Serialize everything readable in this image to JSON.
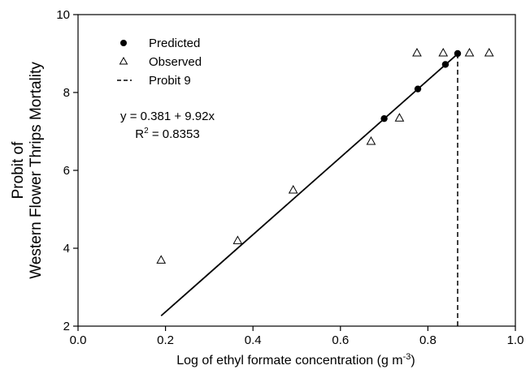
{
  "chart_data": {
    "type": "scatter",
    "title": "",
    "xlabel": "Log of ethyl formate concentration (g m",
    "xlabel_sup": "-3",
    "xlabel_close": ")",
    "ylabel_line1": "Probit of",
    "ylabel_line2": "Western Flower Thrips Mortality",
    "xlim": [
      0.0,
      1.0
    ],
    "ylim": [
      2,
      10
    ],
    "x_ticks": [
      0.0,
      0.2,
      0.4,
      0.6,
      0.8,
      1.0
    ],
    "x_tick_labels": [
      "0.0",
      "0.2",
      "0.4",
      "0.6",
      "0.8",
      "1.0"
    ],
    "y_ticks": [
      2,
      4,
      6,
      8,
      10
    ],
    "y_tick_labels": [
      "2",
      "4",
      "6",
      "8",
      "10"
    ],
    "grid": false,
    "legend_position": "top-left",
    "series": [
      {
        "name": "Predicted",
        "marker": "filled-circle",
        "x": [
          0.7,
          0.777,
          0.84,
          0.868
        ],
        "y": [
          7.33,
          8.09,
          8.72,
          9.0
        ]
      },
      {
        "name": "Observed",
        "marker": "open-triangle",
        "x": [
          0.19,
          0.365,
          0.492,
          0.67,
          0.735,
          0.775,
          0.835,
          0.895,
          0.94
        ],
        "y": [
          3.7,
          4.2,
          5.5,
          6.75,
          7.35,
          9.02,
          9.02,
          9.02,
          9.02
        ]
      },
      {
        "name": "Probit 9",
        "marker": "dashed-line",
        "x": [
          0.868,
          0.868
        ],
        "y": [
          2,
          9.0
        ]
      }
    ],
    "regression": {
      "intercept": 0.381,
      "slope": 9.92,
      "x_range": [
        0.19,
        0.868
      ]
    },
    "annotations": {
      "equation": "y = 0.381 + 9.92x",
      "r2_prefix": "R",
      "r2_sup": "2",
      "r2_value": " = 0.8353"
    }
  }
}
